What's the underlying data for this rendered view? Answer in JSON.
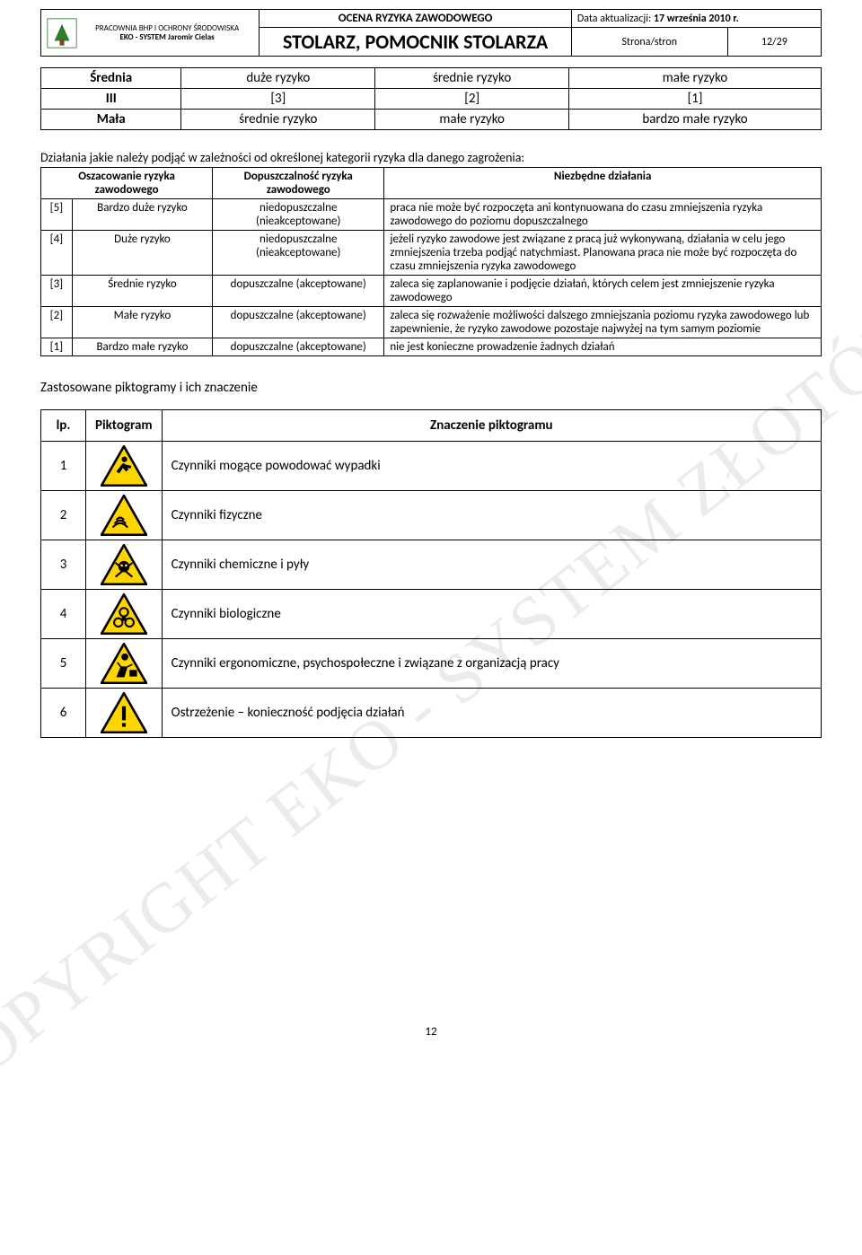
{
  "header": {
    "org_line1": "PRACOWNIA BHP I OCHRONY ŚRODOWISKA",
    "org_line2": "EKO - SYSTEM  Jaromir Cielas",
    "assessment_label": "OCENA RYZYKA ZAWODOWEGO",
    "update_label": "Data aktualizacji: ",
    "update_date": "17 września 2010 r.",
    "job_title": "STOLARZ, POMOCNIK STOLARZA",
    "page_label": "Strona/stron",
    "page_value": "12/29"
  },
  "matrix": {
    "rows": [
      {
        "label": "Średnia",
        "c1": "duże ryzyko",
        "c2": "średnie ryzyko",
        "c3": "małe ryzyko"
      },
      {
        "label": "III",
        "c1": "[3]",
        "c2": "[2]",
        "c3": "[1]"
      },
      {
        "label": "Mała",
        "c1": "średnie ryzyko",
        "c2": "małe ryzyko",
        "c3": "bardzo małe ryzyko"
      }
    ]
  },
  "para": "Działania jakie należy podjąć w zależności od określonej kategorii ryzyka dla danego zagrożenia:",
  "actions": {
    "headers": {
      "assessment": "Oszacowanie ryzyka zawodowego",
      "admissibility": "Dopuszczalność ryzyka zawodowego",
      "necessary": "Niezbędne działania"
    },
    "rows": [
      {
        "n": "[5]",
        "name": "Bardzo duże ryzyko",
        "adm": "niedopuszczalne (nieakceptowane)",
        "desc": "praca nie może być rozpoczęta ani kontynuowana do czasu zmniejszenia ryzyka zawodowego do poziomu dopuszczalnego"
      },
      {
        "n": "[4]",
        "name": "Duże ryzyko",
        "adm": "niedopuszczalne (nieakceptowane)",
        "desc": "jeżeli ryzyko zawodowe jest związane z pracą już wykonywaną, działania w celu jego zmniejszenia trzeba podjąć natychmiast. Planowana praca nie może być rozpoczęta do czasu zmniejszenia ryzyka zawodowego"
      },
      {
        "n": "[3]",
        "name": "Średnie ryzyko",
        "adm": "dopuszczalne (akceptowane)",
        "desc": "zaleca się zaplanowanie i podjęcie działań, których celem jest zmniejszenie ryzyka zawodowego"
      },
      {
        "n": "[2]",
        "name": "Małe ryzyko",
        "adm": "dopuszczalne (akceptowane)",
        "desc": "zaleca się rozważenie możliwości dalszego zmniejszania poziomu ryzyka zawodowego lub zapewnienie, że ryzyko zawodowe pozostaje najwyżej na tym samym poziomie"
      },
      {
        "n": "[1]",
        "name": "Bardzo małe ryzyko",
        "adm": "dopuszczalne (akceptowane)",
        "desc": "nie jest konieczne prowadzenie żadnych działań"
      }
    ]
  },
  "picto": {
    "title": "Zastosowane piktogramy i ich znaczenie",
    "headers": {
      "lp": "lp.",
      "picto": "Piktogram",
      "meaning": "Znaczenie piktogramu"
    },
    "rows": [
      {
        "n": "1",
        "icon_fill": "#ffd500",
        "icon": "run",
        "desc": "Czynniki mogące powodować wypadki"
      },
      {
        "n": "2",
        "icon_fill": "#ffd500",
        "icon": "waves",
        "desc": "Czynniki fizyczne"
      },
      {
        "n": "3",
        "icon_fill": "#ffd500",
        "icon": "skull",
        "desc": "Czynniki chemiczne i pyły"
      },
      {
        "n": "4",
        "icon_fill": "#ffd500",
        "icon": "bio",
        "desc": "Czynniki biologiczne"
      },
      {
        "n": "5",
        "icon_fill": "#ffd500",
        "icon": "lift",
        "desc": "Czynniki ergonomiczne, psychospołeczne i związane z organizacją pracy"
      },
      {
        "n": "6",
        "icon_fill": "#ffd500",
        "icon": "exclam",
        "desc": "Ostrzeżenie – konieczność podjęcia działań"
      }
    ]
  },
  "watermark": "COPYRIGHT EKO - SYSTEM ZŁOTÓW",
  "footer_page": "12",
  "colors": {
    "triangle_stroke": "#000000",
    "triangle_fill": "#ffd500",
    "text": "#000000"
  }
}
